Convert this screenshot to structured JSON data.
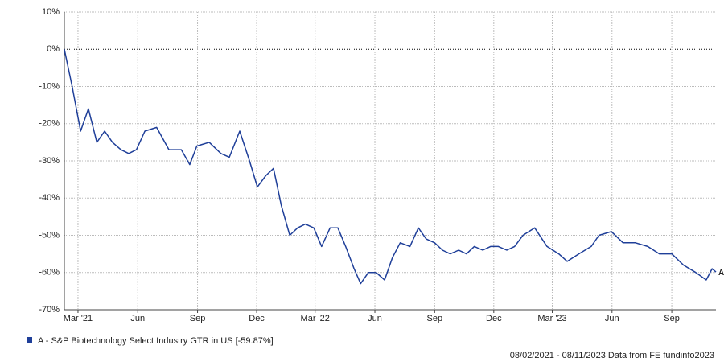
{
  "chart_data": {
    "type": "line",
    "x": [
      "2021-02-08",
      "2021-02-20",
      "2021-03-05",
      "2021-03-17",
      "2021-03-30",
      "2021-04-11",
      "2021-04-23",
      "2021-05-06",
      "2021-05-18",
      "2021-05-30",
      "2021-06-12",
      "2021-06-30",
      "2021-07-19",
      "2021-08-07",
      "2021-08-20",
      "2021-08-31",
      "2021-09-19",
      "2021-10-07",
      "2021-10-20",
      "2021-11-05",
      "2021-11-20",
      "2021-12-02",
      "2021-12-15",
      "2021-12-27",
      "2022-01-08",
      "2022-01-21",
      "2022-02-02",
      "2022-02-14",
      "2022-02-27",
      "2022-03-11",
      "2022-03-24",
      "2022-04-05",
      "2022-04-17",
      "2022-04-30",
      "2022-05-10",
      "2022-05-22",
      "2022-06-03",
      "2022-06-16",
      "2022-06-28",
      "2022-07-10",
      "2022-07-25",
      "2022-08-07",
      "2022-08-19",
      "2022-09-01",
      "2022-09-13",
      "2022-09-25",
      "2022-10-08",
      "2022-10-20",
      "2022-11-01",
      "2022-11-14",
      "2022-11-26",
      "2022-12-08",
      "2022-12-21",
      "2023-01-02",
      "2023-01-15",
      "2023-02-02",
      "2023-02-21",
      "2023-03-11",
      "2023-03-24",
      "2023-04-11",
      "2023-04-30",
      "2023-05-12",
      "2023-05-31",
      "2023-06-18",
      "2023-07-07",
      "2023-07-26",
      "2023-08-13",
      "2023-09-01",
      "2023-09-19",
      "2023-10-08",
      "2023-10-24",
      "2023-11-02",
      "2023-11-08"
    ],
    "series": [
      {
        "name": "A - S&P Biotechnology Select Industry GTR in US [-59.87%]",
        "color": "#1f3f99",
        "values": [
          0,
          -10,
          -22,
          -16,
          -25,
          -22,
          -25,
          -27,
          -28,
          -27,
          -22,
          -21,
          -27,
          -27,
          -31,
          -26,
          -25,
          -28,
          -29,
          -22,
          -30,
          -37,
          -34,
          -32,
          -42,
          -50,
          -48,
          -47,
          -48,
          -53,
          -48,
          -48,
          -53,
          -59,
          -63,
          -60,
          -60,
          -62,
          -56,
          -52,
          -53,
          -48,
          -51,
          -52,
          -54,
          -55,
          -54,
          -55,
          -53,
          -54,
          -53,
          -53,
          -54,
          -53,
          -50,
          -48,
          -53,
          -55,
          -57,
          -55,
          -53,
          -50,
          -49,
          -52,
          -52,
          -53,
          -55,
          -55,
          -58,
          -60,
          -62,
          -59,
          -59.87
        ]
      }
    ],
    "end_label": "A",
    "xlim": [
      "2021-02-08",
      "2023-11-08"
    ],
    "xticks": [
      {
        "value": "2021-03-01",
        "label": "Mar '21"
      },
      {
        "value": "2021-06-01",
        "label": "Jun"
      },
      {
        "value": "2021-09-01",
        "label": "Sep"
      },
      {
        "value": "2021-12-01",
        "label": "Dec"
      },
      {
        "value": "2022-03-01",
        "label": "Mar '22"
      },
      {
        "value": "2022-06-01",
        "label": "Jun"
      },
      {
        "value": "2022-09-01",
        "label": "Sep"
      },
      {
        "value": "2022-12-01",
        "label": "Dec"
      },
      {
        "value": "2023-03-01",
        "label": "Mar '23"
      },
      {
        "value": "2023-06-01",
        "label": "Jun"
      },
      {
        "value": "2023-09-01",
        "label": "Sep"
      }
    ],
    "ylim": [
      -70,
      10
    ],
    "yticks": [
      {
        "value": 10,
        "label": "10%"
      },
      {
        "value": 0,
        "label": "0%"
      },
      {
        "value": -10,
        "label": "-10%"
      },
      {
        "value": -20,
        "label": "-20%"
      },
      {
        "value": -30,
        "label": "-30%"
      },
      {
        "value": -40,
        "label": "-40%"
      },
      {
        "value": -50,
        "label": "-50%"
      },
      {
        "value": -60,
        "label": "-60%"
      },
      {
        "value": -70,
        "label": "-70%"
      }
    ],
    "grid": true,
    "footer": "08/02/2021 - 08/11/2023 Data from FE fundinfo2023"
  }
}
